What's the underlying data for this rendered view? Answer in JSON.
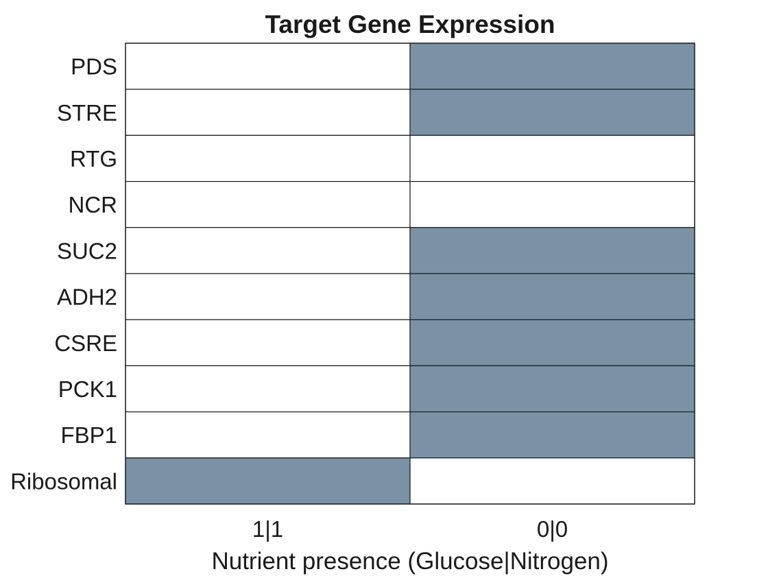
{
  "chart_data": {
    "type": "heatmap",
    "title": "Target Gene Expression",
    "xlabel": "Nutrient presence (Glucose|Nitrogen)",
    "ylabel": "",
    "columns": [
      "1|1",
      "0|0"
    ],
    "rows": [
      "PDS",
      "STRE",
      "RTG",
      "NCR",
      "SUC2",
      "ADH2",
      "CSRE",
      "PCK1",
      "FBP1",
      "Ribosomal"
    ],
    "values": [
      [
        0,
        1
      ],
      [
        0,
        1
      ],
      [
        0,
        0
      ],
      [
        0,
        0
      ],
      [
        0,
        1
      ],
      [
        0,
        1
      ],
      [
        0,
        1
      ],
      [
        0,
        1
      ],
      [
        0,
        1
      ],
      [
        1,
        0
      ]
    ],
    "colors": {
      "on": "#7b92a6",
      "off": "#ffffff"
    },
    "grid": true,
    "legend": "none"
  }
}
